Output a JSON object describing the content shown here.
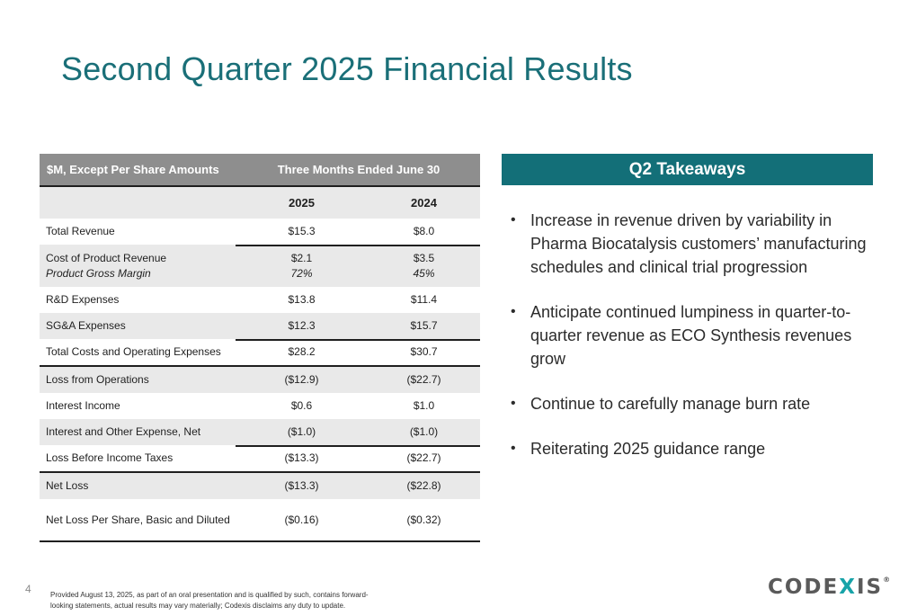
{
  "slide": {
    "title": "Second Quarter 2025 Financial Results",
    "page_number": "4",
    "footnote": "Provided August 13, 2025, as part of an oral presentation and is qualified by such, contains forward-looking statements, actual results may vary materially; Codexis disclaims any duty to update.",
    "logo": {
      "part1": "COD",
      "part2": "E",
      "x": "X",
      "part3": "IS",
      "reg": "®"
    },
    "colors": {
      "title": "#1a6f78",
      "takeaway_header": "#136f78",
      "table_header": "#8e8e8e",
      "logo_accent": "#17a3a8"
    }
  },
  "table": {
    "header_left": "$M, Except Per Share Amounts",
    "header_right": "Three Months Ended June 30",
    "year1": "2025",
    "year2": "2024",
    "rows": [
      {
        "label": "Total Revenue",
        "v2025": "$15.3",
        "v2024": "$8.0"
      },
      {
        "label": "Cost of Product Revenue",
        "sublabel": "Product Gross Margin",
        "v2025": "$2.1",
        "sub2025": "72%",
        "v2024": "$3.5",
        "sub2024": "45%"
      },
      {
        "label": "R&D Expenses",
        "v2025": "$13.8",
        "v2024": "$11.4"
      },
      {
        "label": "SG&A Expenses",
        "v2025": "$12.3",
        "v2024": "$15.7"
      },
      {
        "label": "Total Costs and Operating Expenses",
        "v2025": "$28.2",
        "v2024": "$30.7"
      },
      {
        "label": "Loss from Operations",
        "v2025": "($12.9)",
        "v2024": "($22.7)"
      },
      {
        "label": "Interest Income",
        "v2025": "$0.6",
        "v2024": "$1.0"
      },
      {
        "label": "Interest and Other Expense, Net",
        "v2025": "($1.0)",
        "v2024": "($1.0)"
      },
      {
        "label": "Loss Before Income Taxes",
        "v2025": "($13.3)",
        "v2024": "($22.7)"
      },
      {
        "label": "Net Loss",
        "v2025": "($13.3)",
        "v2024": "($22.8)"
      },
      {
        "label": "Net Loss Per Share, Basic and Diluted",
        "v2025": "($0.16)",
        "v2024": "($0.32)"
      }
    ]
  },
  "takeaways": {
    "title": "Q2 Takeaways",
    "items": [
      "Increase in revenue driven by variability in Pharma Biocatalysis customers’ manufacturing schedules and clinical trial progression",
      "Anticipate continued lumpiness in quarter-to-quarter revenue as ECO Synthesis revenues grow",
      "Continue to carefully manage burn rate",
      "Reiterating 2025 guidance range"
    ]
  }
}
